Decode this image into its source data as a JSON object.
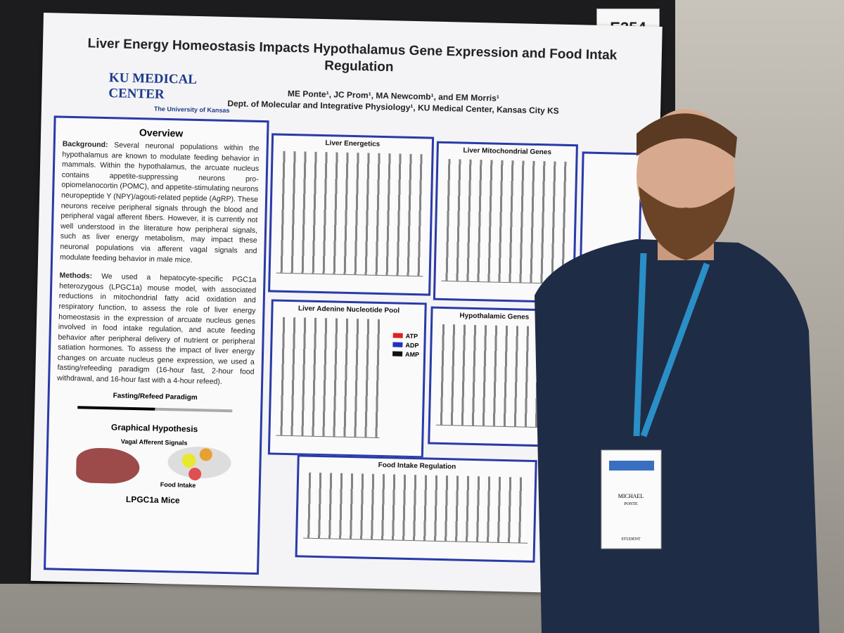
{
  "board_number": "E354",
  "poster": {
    "title_line1": "Liver Energy Homeostasis Impacts Hypothalamus Gene Expression and Food Intak",
    "title_line2": "Regulation",
    "logo_main": "KU MEDICAL CENTER",
    "logo_sub": "The University of Kansas",
    "authors": "ME Ponte¹, JC Prom¹, MA Newcomb¹, and EM Morris¹",
    "affiliation": "Dept. of Molecular and Integrative Physiology¹, KU Medical Center, Kansas City KS",
    "overview": {
      "heading": "Overview",
      "background_label": "Background:",
      "background_text": "Several neuronal populations within the hypothalamus are known to modulate feeding behavior in mammals. Within the hypothalamus, the arcuate nucleus contains appetite-suppressing neurons pro-opiomelanocortin (POMC), and appetite-stimulating neurons neuropeptide Y (NPY)/agouti-related peptide (AgRP). These neurons receive peripheral signals through the blood and peripheral vagal afferent fibers. However, it is currently not well understood in the literature how peripheral signals, such as liver energy metabolism, may impact these neuronal populations via afferent vagal signals and modulate feeding behavior in male mice.",
      "methods_label": "Methods:",
      "methods_text": "We used a hepatocyte-specific PGC1a heterozygous (LPGC1a) mouse model, with associated reductions in mitochondrial fatty acid oxidation and respiratory function, to assess the role of liver energy homeostasis in the expression of arcuate nucleus genes involved in food intake regulation, and acute feeding behavior after peripheral delivery of nutrient or peripheral satiation hormones. To assess the impact of liver energy changes on arcuate nucleus gene expression, we used a fasting/refeeding paradigm (16-hour fast, 2-hour food withdrawal, and 16-hour fast with a 4-hour refeed).",
      "paradigm_heading": "Fasting/Refeed Paradigm",
      "hypothesis_heading": "Graphical Hypothesis",
      "vagal": "Vagal Afferent Signals",
      "food_intake": "Food Intake",
      "mice": "LPGC1a Mice"
    },
    "panels": [
      {
        "title": "Liver Energetics"
      },
      {
        "title": "Liver Mitochondrial Genes"
      },
      {
        "title": "Liver Adenine Nucleotide Pool"
      },
      {
        "title": "Hypothalamic Genes"
      },
      {
        "title": "Food Intake Regulation"
      }
    ],
    "legend": [
      {
        "name": "ATP",
        "color": "#e02020"
      },
      {
        "name": "ADP",
        "color": "#2030c0"
      },
      {
        "name": "AMP",
        "color": "#111111"
      }
    ]
  },
  "badge": {
    "first": "MICHAEL",
    "last": "PONTE",
    "role": "STUDENT"
  }
}
